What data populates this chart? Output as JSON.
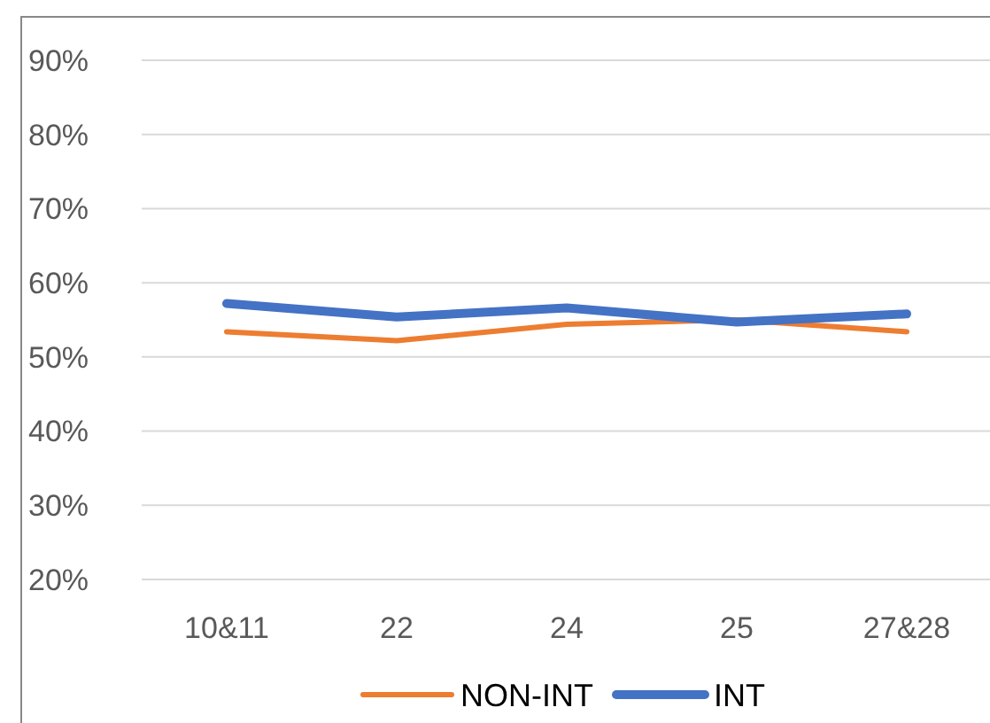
{
  "chart_data": {
    "type": "line",
    "categories": [
      "10&11",
      "22",
      "24",
      "25",
      "27&28"
    ],
    "series": [
      {
        "name": "NON-INT",
        "color": "#ed7d31",
        "values": [
          53.4,
          52.2,
          54.4,
          55.0,
          53.4
        ]
      },
      {
        "name": "INT",
        "color": "#4472c4",
        "values": [
          57.2,
          55.4,
          56.6,
          54.7,
          55.8
        ]
      }
    ],
    "ylim": [
      20,
      90
    ],
    "yticks": [
      {
        "value": 20,
        "label": "20%"
      },
      {
        "value": 30,
        "label": "30%"
      },
      {
        "value": 40,
        "label": "40%"
      },
      {
        "value": 50,
        "label": "50%"
      },
      {
        "value": 60,
        "label": "60%"
      },
      {
        "value": 70,
        "label": "70%"
      },
      {
        "value": 80,
        "label": "80%"
      },
      {
        "value": 90,
        "label": "90%"
      }
    ],
    "grid": "y",
    "legend": "bottom",
    "marker": "none",
    "line_style": "solid"
  }
}
